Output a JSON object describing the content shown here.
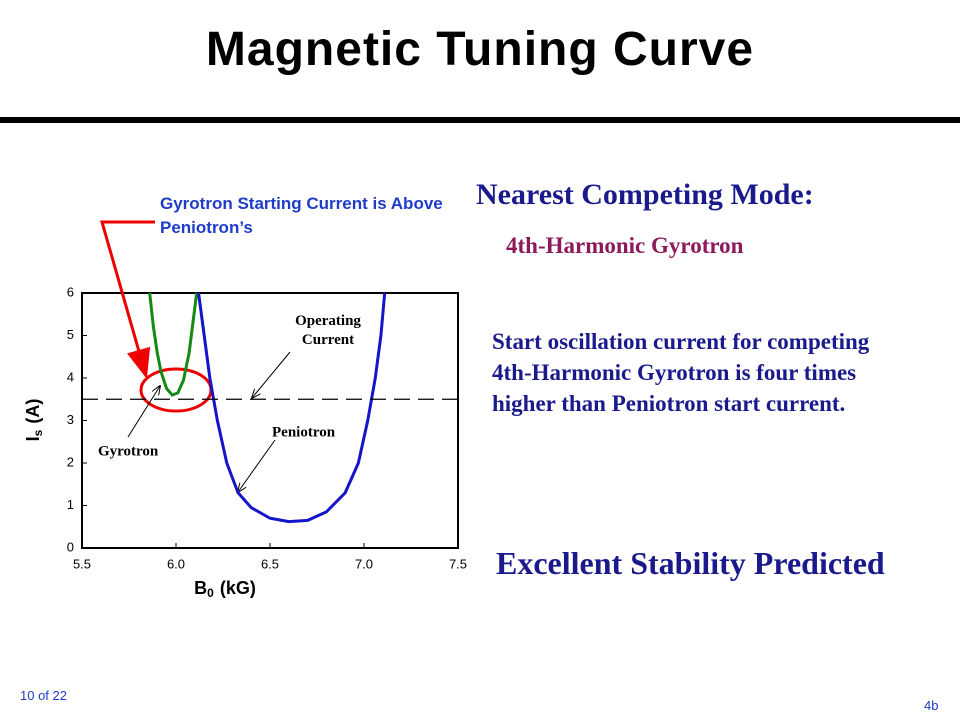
{
  "slide": {
    "title": "Magnetic Tuning Curve",
    "callout": "Gyrotron Starting Current is Above Peniotron’s",
    "heading": "Nearest Competing Mode:",
    "subheading": "4th-Harmonic Gyrotron",
    "body": "Start oscillation current for competing 4th-Harmonic Gyrotron is four times higher than Peniotron start current.",
    "conclusion": "Excellent Stability Predicted",
    "page": "10 of 22",
    "slide_id": "4b"
  },
  "chart_data": {
    "type": "line",
    "xlabel": [
      "B",
      "0",
      "(kG)"
    ],
    "ylabel": [
      "I",
      "s",
      "(A)"
    ],
    "xlim": [
      5.5,
      7.5
    ],
    "xticks": [
      5.5,
      {
        "value": 6,
        "label": "6.0"
      },
      6.5,
      {
        "value": 7,
        "label": "7.0"
      },
      7.5
    ],
    "ylim": [
      0,
      6
    ],
    "yticks": [
      0,
      1,
      2,
      3,
      4,
      5,
      6
    ],
    "series": [
      {
        "name": "Gyrotron",
        "color": "#138a13",
        "dash": false,
        "x": [
          5.86,
          5.88,
          5.9,
          5.92,
          5.95,
          5.98,
          6.01,
          6.04,
          6.07,
          6.09,
          6.11
        ],
        "values": [
          6,
          5.2,
          4.6,
          4.15,
          3.75,
          3.6,
          3.65,
          3.95,
          4.6,
          5.3,
          6
        ]
      },
      {
        "name": "Peniotron",
        "color": "#1414c8",
        "dash": false,
        "x": [
          6.12,
          6.15,
          6.18,
          6.22,
          6.27,
          6.33,
          6.4,
          6.5,
          6.6,
          6.7,
          6.8,
          6.9,
          6.97,
          7.02,
          7.06,
          7.09,
          7.11
        ],
        "values": [
          6,
          5,
          4,
          3,
          2,
          1.3,
          0.95,
          0.7,
          0.62,
          0.65,
          0.85,
          1.3,
          2,
          3,
          4,
          5,
          6
        ]
      },
      {
        "name": "Operating Current",
        "color": "#000000",
        "dash": true,
        "x": [
          5.5,
          7.5
        ],
        "values": [
          3.5,
          3.5
        ]
      }
    ]
  }
}
